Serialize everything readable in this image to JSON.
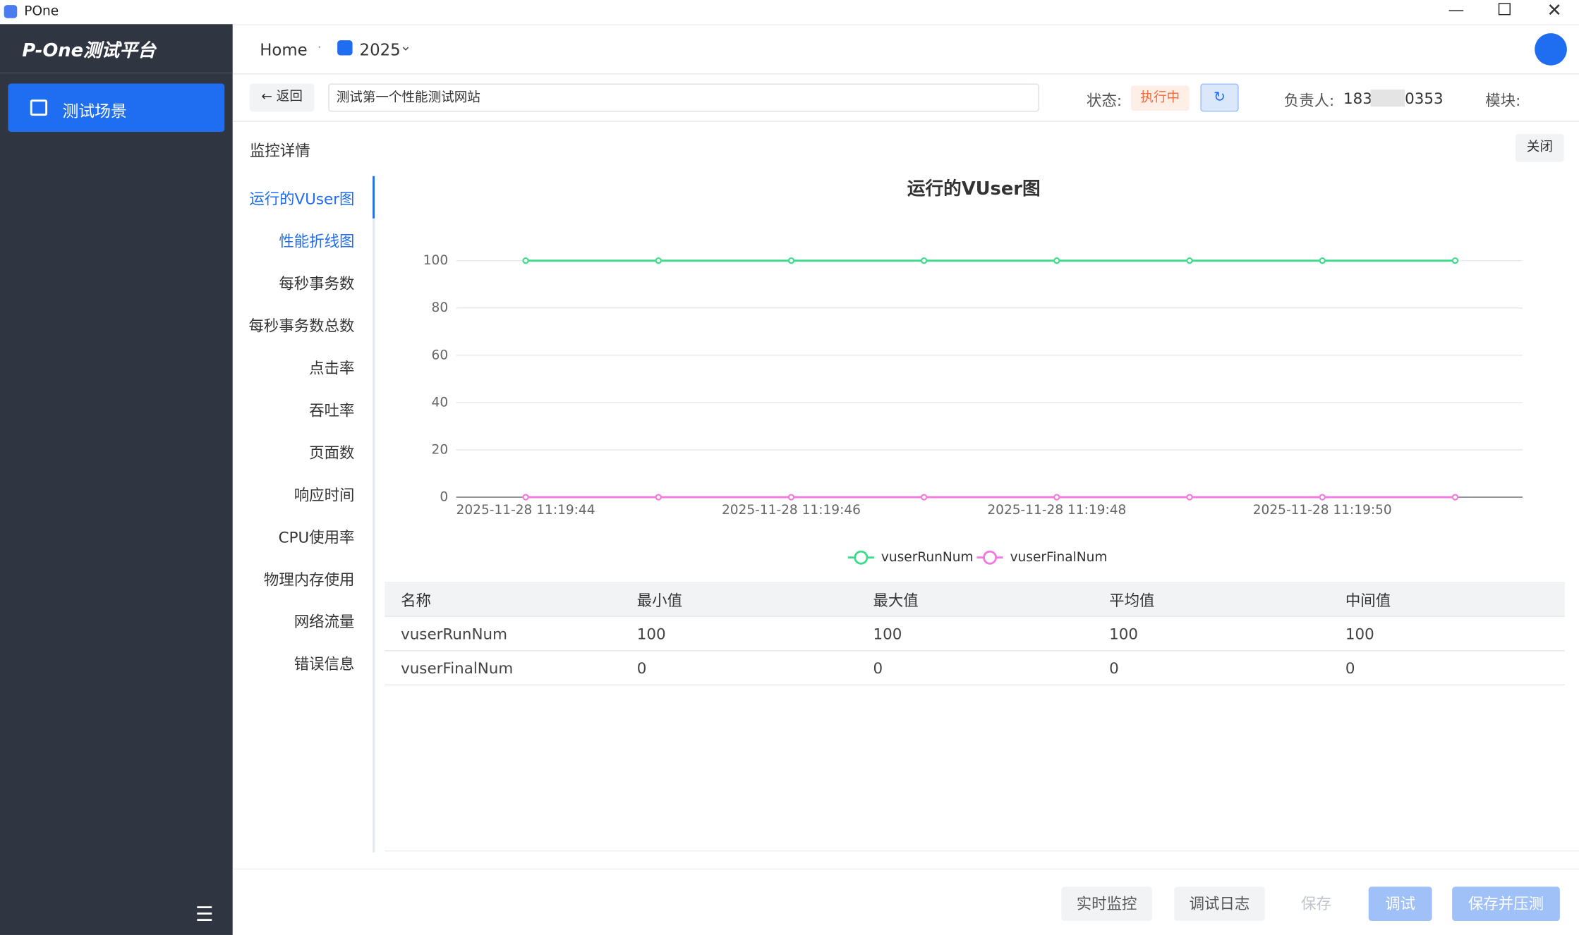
{
  "window": {
    "title": "POne"
  },
  "sidebar": {
    "logo": "P-One测试平台",
    "items": [
      "测试场景"
    ]
  },
  "header": {
    "home": "Home",
    "project": "2025"
  },
  "toolbar": {
    "back": "返回",
    "scene_name": "测试第一个性能测试网站",
    "status_label": "状态:",
    "status": "执行中",
    "owner_label": "负责人:",
    "owner_start": "183",
    "owner_end": "0353",
    "module_label": "模块:"
  },
  "panel": {
    "title": "监控详情",
    "close": "关闭",
    "nav": [
      "运行的VUser图",
      "性能折线图",
      "每秒事务数",
      "每秒事务数总数",
      "点击率",
      "吞吐率",
      "页面数",
      "响应时间",
      "CPU使用率",
      "物理内存使用",
      "网络流量",
      "错误信息"
    ]
  },
  "chart_data": {
    "type": "line",
    "title": "运行的VUser图",
    "categories": [
      "2025-11-28 11:19:44",
      null,
      "2025-11-28 11:19:46",
      null,
      "2025-11-28 11:19:48",
      null,
      "2025-11-28 11:19:50",
      null
    ],
    "series": [
      {
        "name": "vuserRunNum",
        "color": "#3ddc8c",
        "values": [
          100,
          100,
          100,
          100,
          100,
          100,
          100,
          100
        ]
      },
      {
        "name": "vuserFinalNum",
        "color": "#f07ade",
        "values": [
          0,
          0,
          0,
          0,
          0,
          0,
          0,
          0
        ]
      }
    ],
    "ylim": [
      0,
      100
    ],
    "yticks": [
      0,
      20,
      40,
      60,
      80,
      100
    ],
    "grid": true
  },
  "table": {
    "header": [
      "名称",
      "最小值",
      "最大值",
      "平均值",
      "中间值"
    ],
    "rows": [
      [
        "vuserRunNum",
        100,
        100,
        100,
        100
      ],
      [
        "vuserFinalNum",
        0,
        0,
        0,
        0
      ]
    ]
  },
  "footer": {
    "buttons": [
      "实时监控",
      "调试日志",
      "保存",
      "调试",
      "保存并压测"
    ]
  }
}
